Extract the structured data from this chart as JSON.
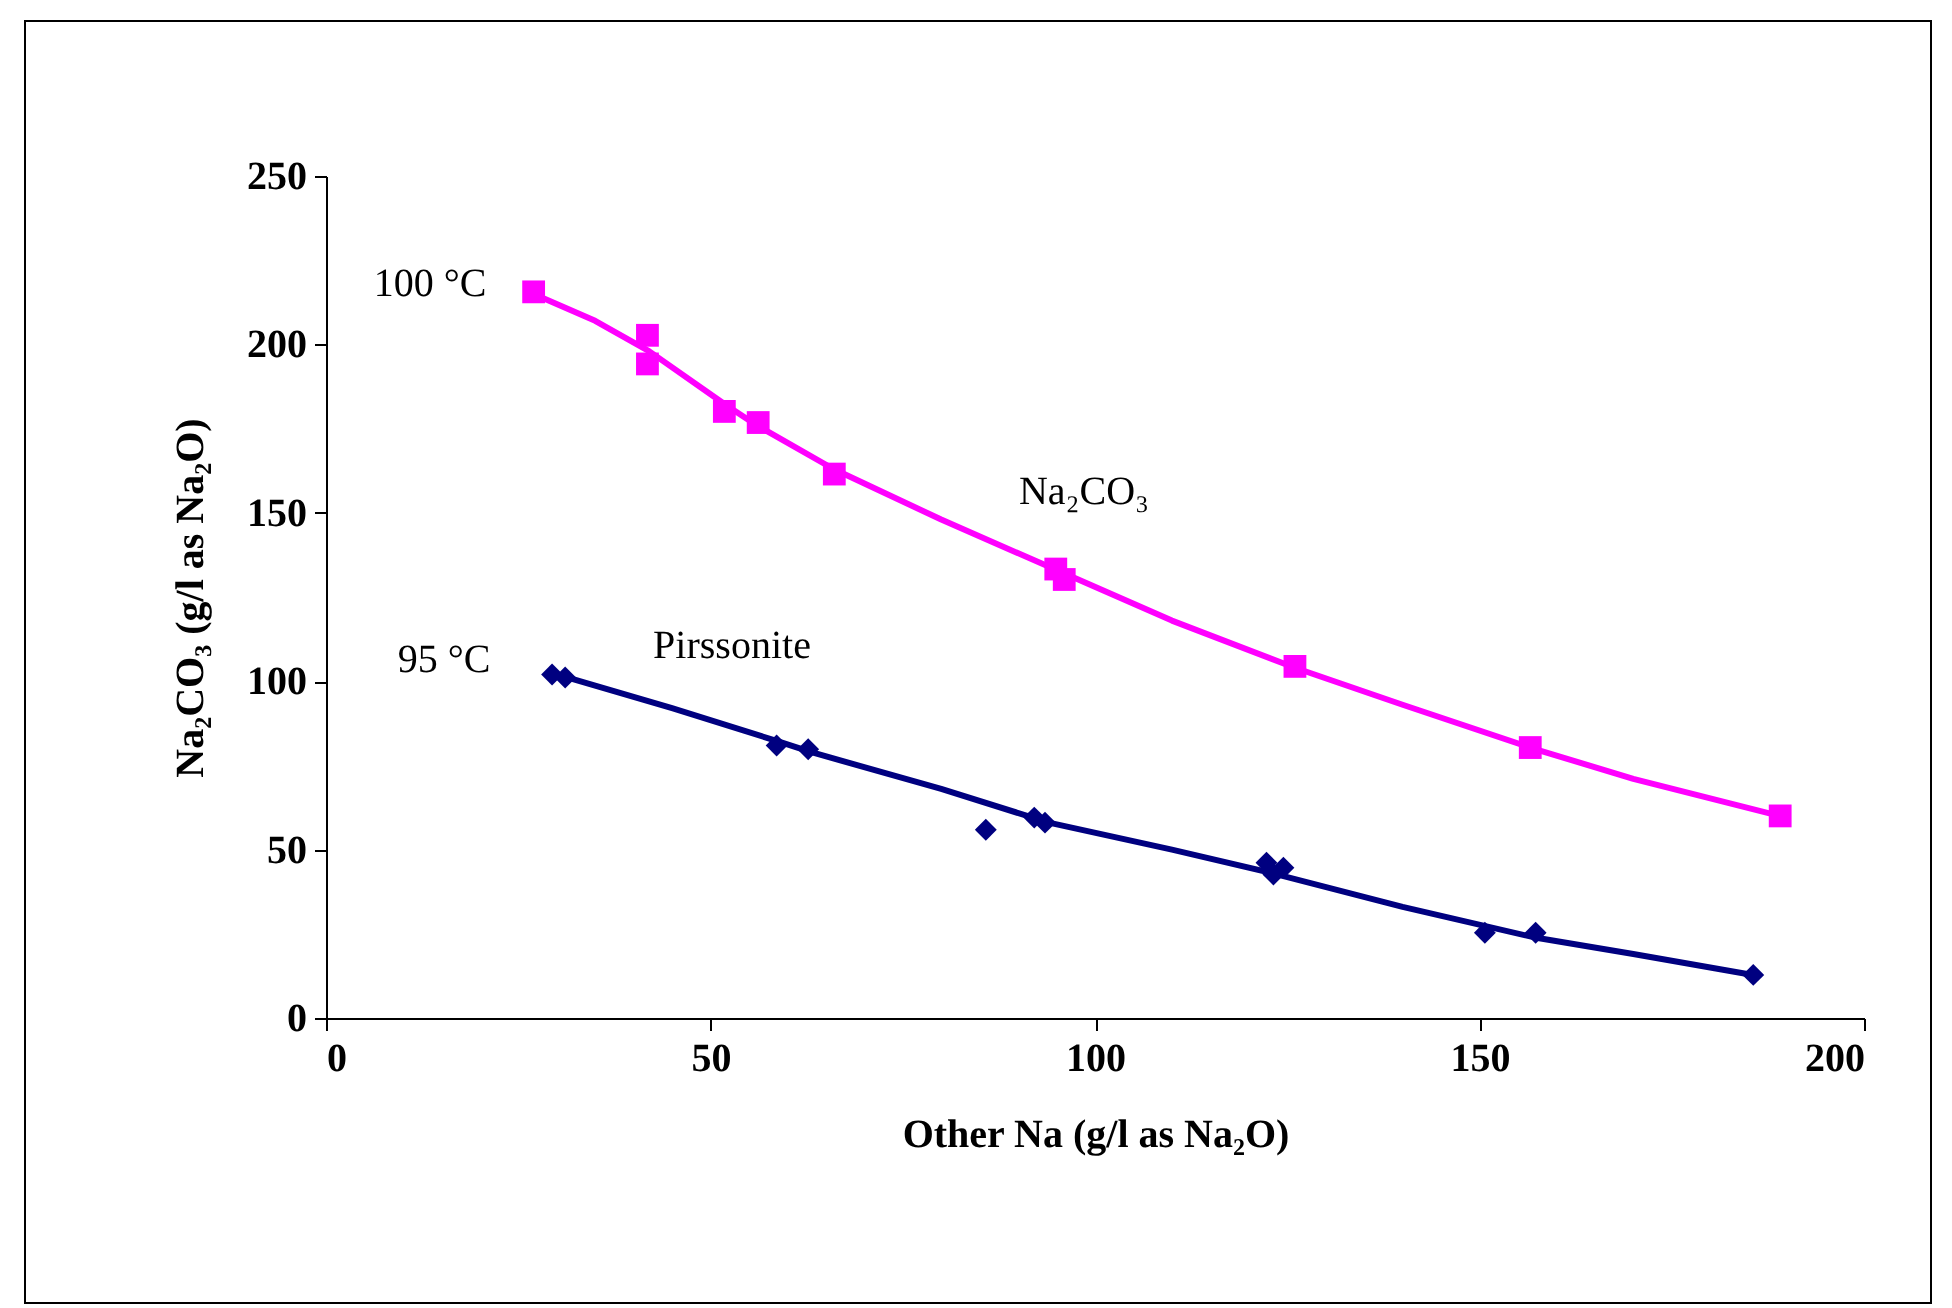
{
  "chart_data": {
    "type": "scatter",
    "xlabel": "Other Na (g/l as Na₂O)",
    "ylabel": "Na₂CO₃ (g/l as Na₂O)",
    "xlim": [
      0,
      200
    ],
    "xticks": [
      0,
      50,
      100,
      150,
      200
    ],
    "ylim": [
      0,
      250
    ],
    "yticks": [
      0,
      50,
      100,
      150,
      200,
      250
    ],
    "grid": false,
    "series": [
      {
        "marker": "square",
        "color": "#ff00ff",
        "x": [
          27,
          41.8,
          41.8,
          51.8,
          56.2,
          66.1,
          94.9,
          96,
          126,
          156.6,
          189.1
        ],
        "values": [
          215.6,
          202.7,
          194.2,
          180.1,
          176.8,
          161.5,
          133.3,
          130.2,
          104.4,
          80.3,
          60
        ]
      },
      {
        "marker": "diamond",
        "color": "#000080",
        "x": [
          29.4,
          31.1,
          58.6,
          62.7,
          85.8,
          92.1,
          93.5,
          122.3,
          123.2,
          124.5,
          150.7,
          157.3,
          185.6
        ],
        "values": [
          102,
          101.1,
          80.9,
          79.8,
          55.9,
          59.5,
          58,
          46.1,
          42.6,
          44.6,
          25.3,
          25.3,
          12.8
        ]
      },
      {
        "type": "line",
        "color": "#ff00ff",
        "x": [
          27,
          35,
          42,
          52,
          56,
          66,
          80,
          95,
          110,
          126,
          140,
          157,
          170,
          189
        ],
        "values": [
          215,
          207,
          198,
          182,
          176,
          163,
          148,
          133,
          118,
          104,
          93,
          80,
          71,
          60
        ]
      },
      {
        "type": "line",
        "color": "#000080",
        "x": [
          30,
          45,
          59,
          63,
          80,
          94,
          110,
          123,
          140,
          157,
          170,
          185
        ],
        "values": [
          102,
          92,
          82,
          79,
          68,
          58,
          50,
          43,
          33,
          24,
          19,
          13
        ]
      }
    ],
    "annotations": [
      "100 °C",
      "95 °C",
      "Na₂CO₃",
      "Pirssonite"
    ]
  }
}
